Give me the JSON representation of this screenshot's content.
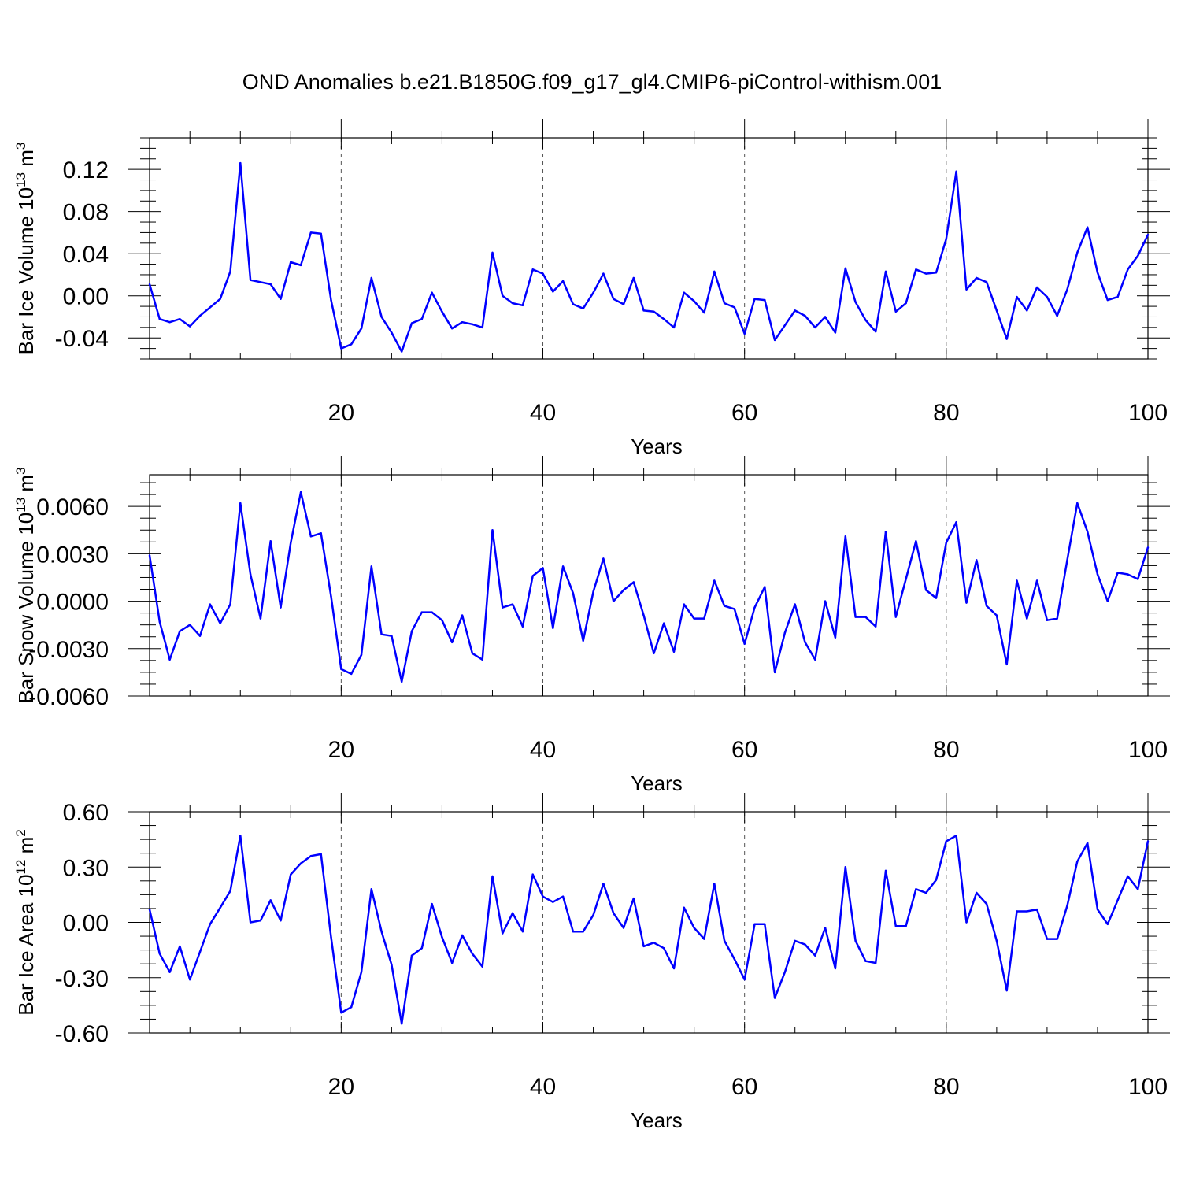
{
  "title": "OND Anomalies b.e21.B1850G.f09_g17_gl4.CMIP6-piControl-withism.001",
  "colors": {
    "series": "#0000ff",
    "grid": "#555555",
    "axes": "#000000"
  },
  "chart_data": [
    {
      "type": "line",
      "ylabel": "Bar Ice Volume 10",
      "ylabel_exp": "13",
      "ylabel_unit": " m",
      "ylabel_unit_exp": "3",
      "xlabel": "Years",
      "xlim": [
        1,
        100
      ],
      "ylim": [
        -0.06,
        0.15
      ],
      "xticks": [
        20,
        40,
        60,
        80,
        100
      ],
      "xtick_labels": [
        "20",
        "40",
        "60",
        "80",
        "100"
      ],
      "yticks": [
        -0.04,
        0.0,
        0.04,
        0.08,
        0.12
      ],
      "ytick_labels": [
        "-0.04",
        "0.00",
        "0.04",
        "0.08",
        "0.12"
      ],
      "grid": "dashed vertical at x ticks",
      "series": [
        {
          "values": [
            0.011,
            -0.022,
            -0.025,
            -0.022,
            -0.029,
            -0.019,
            -0.011,
            -0.003,
            0.023,
            0.126,
            0.015,
            0.013,
            0.011,
            -0.003,
            0.032,
            0.029,
            0.06,
            0.059,
            -0.004,
            -0.05,
            -0.046,
            -0.031,
            0.017,
            -0.02,
            -0.035,
            -0.053,
            -0.026,
            -0.022,
            0.003,
            -0.015,
            -0.031,
            -0.025,
            -0.027,
            -0.03,
            0.041,
            0.0,
            -0.007,
            -0.009,
            0.025,
            0.021,
            0.004,
            0.014,
            -0.008,
            -0.012,
            0.003,
            0.021,
            -0.003,
            -0.008,
            0.017,
            -0.014,
            -0.015,
            -0.022,
            -0.03,
            0.003,
            -0.005,
            -0.016,
            0.023,
            -0.007,
            -0.011,
            -0.036,
            -0.003,
            -0.004,
            -0.042,
            -0.028,
            -0.014,
            -0.019,
            -0.03,
            -0.02,
            -0.035,
            0.026,
            -0.006,
            -0.023,
            -0.034,
            0.023,
            -0.015,
            -0.007,
            0.025,
            0.021,
            0.022,
            0.054,
            0.118,
            0.006,
            0.017,
            0.013,
            -0.014,
            -0.041,
            -0.001,
            -0.014,
            0.008,
            -0.001,
            -0.019,
            0.006,
            0.041,
            0.065,
            0.022,
            -0.004,
            -0.001,
            0.025,
            0.038,
            0.058
          ]
        }
      ]
    },
    {
      "type": "line",
      "ylabel": "Bar Snow Volume 10",
      "ylabel_exp": "13",
      "ylabel_unit": " m",
      "ylabel_unit_exp": "3",
      "xlabel": "Years",
      "xlim": [
        1,
        100
      ],
      "ylim": [
        -0.006,
        0.008
      ],
      "xticks": [
        20,
        40,
        60,
        80,
        100
      ],
      "xtick_labels": [
        "20",
        "40",
        "60",
        "80",
        "100"
      ],
      "yticks": [
        -0.006,
        -0.003,
        0.0,
        0.003,
        0.006
      ],
      "ytick_labels": [
        "-0.0060",
        "-0.0030",
        "0.0000",
        "0.0030",
        "0.0060"
      ],
      "grid": "dashed vertical at x ticks",
      "series": [
        {
          "values": [
            0.0029,
            -0.0013,
            -0.0037,
            -0.0019,
            -0.0015,
            -0.0022,
            -0.0002,
            -0.0014,
            -0.0002,
            0.0062,
            0.0017,
            -0.0011,
            0.0038,
            -0.0004,
            0.0037,
            0.0069,
            0.0041,
            0.0043,
            0.0003,
            -0.0043,
            -0.0046,
            -0.0034,
            0.0022,
            -0.0021,
            -0.0022,
            -0.0051,
            -0.0019,
            -0.0007,
            -0.0007,
            -0.0012,
            -0.0026,
            -0.0009,
            -0.0033,
            -0.0037,
            0.0045,
            -0.0004,
            -0.0002,
            -0.0016,
            0.0016,
            0.0021,
            -0.0017,
            0.0022,
            0.0005,
            -0.0025,
            0.0006,
            0.0027,
            0.0,
            0.0007,
            0.0012,
            -0.0009,
            -0.0033,
            -0.0014,
            -0.0032,
            -0.0002,
            -0.0011,
            -0.0011,
            0.0013,
            -0.0003,
            -0.0005,
            -0.0027,
            -0.0004,
            0.0009,
            -0.0045,
            -0.002,
            -0.0002,
            -0.0026,
            -0.0037,
            0.0,
            -0.0023,
            0.0041,
            -0.001,
            -0.001,
            -0.0016,
            0.0044,
            -0.001,
            0.0014,
            0.0038,
            0.0007,
            0.0002,
            0.0037,
            0.005,
            -0.0001,
            0.0026,
            -0.0003,
            -0.0009,
            -0.004,
            0.0013,
            -0.0011,
            0.0013,
            -0.0012,
            -0.0011,
            0.0026,
            0.0062,
            0.0044,
            0.0017,
            0.0,
            0.0018,
            0.0017,
            0.0014,
            0.0034
          ]
        }
      ]
    },
    {
      "type": "line",
      "ylabel": "Bar Ice Area 10",
      "ylabel_exp": "12",
      "ylabel_unit": " m",
      "ylabel_unit_exp": "2",
      "xlabel": "Years",
      "xlim": [
        1,
        100
      ],
      "ylim": [
        -0.6,
        0.6
      ],
      "xticks": [
        20,
        40,
        60,
        80,
        100
      ],
      "xtick_labels": [
        "20",
        "40",
        "60",
        "80",
        "100"
      ],
      "yticks": [
        -0.6,
        -0.3,
        0.0,
        0.3,
        0.6
      ],
      "ytick_labels": [
        "-0.60",
        "-0.30",
        "0.00",
        "0.30",
        "0.60"
      ],
      "grid": "dashed vertical at x ticks",
      "series": [
        {
          "values": [
            0.07,
            -0.17,
            -0.27,
            -0.13,
            -0.31,
            -0.16,
            -0.01,
            0.08,
            0.17,
            0.47,
            0.0,
            0.01,
            0.12,
            0.01,
            0.26,
            0.32,
            0.36,
            0.37,
            -0.08,
            -0.49,
            -0.46,
            -0.27,
            0.18,
            -0.05,
            -0.23,
            -0.55,
            -0.18,
            -0.14,
            0.1,
            -0.08,
            -0.22,
            -0.07,
            -0.17,
            -0.24,
            0.25,
            -0.06,
            0.05,
            -0.05,
            0.26,
            0.14,
            0.11,
            0.14,
            -0.05,
            -0.05,
            0.04,
            0.21,
            0.05,
            -0.03,
            0.13,
            -0.13,
            -0.11,
            -0.14,
            -0.25,
            0.08,
            -0.03,
            -0.09,
            0.21,
            -0.1,
            -0.2,
            -0.31,
            -0.01,
            -0.01,
            -0.41,
            -0.27,
            -0.1,
            -0.12,
            -0.18,
            -0.03,
            -0.25,
            0.3,
            -0.1,
            -0.21,
            -0.22,
            0.28,
            -0.02,
            -0.02,
            0.18,
            0.16,
            0.23,
            0.44,
            0.47,
            0.0,
            0.16,
            0.1,
            -0.1,
            -0.37,
            0.06,
            0.06,
            0.07,
            -0.09,
            -0.09,
            0.09,
            0.33,
            0.43,
            0.07,
            -0.01,
            0.12,
            0.25,
            0.18,
            0.44
          ]
        }
      ]
    }
  ]
}
